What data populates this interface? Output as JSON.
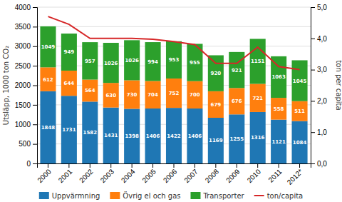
{
  "chart_data": {
    "type": "bar",
    "stacked": true,
    "categories": [
      "2000",
      "2001",
      "2002",
      "2003",
      "2004",
      "2005",
      "2006",
      "2007",
      "2008",
      "2009",
      "2010",
      "2011",
      "2012*"
    ],
    "series": [
      {
        "name": "Uppvärmning",
        "type": "bar",
        "values": [
          1848,
          1731,
          1582,
          1431,
          1398,
          1406,
          1422,
          1406,
          1169,
          1255,
          1316,
          1121,
          1084
        ]
      },
      {
        "name": "Övrig el och gas",
        "type": "bar",
        "values": [
          612,
          644,
          564,
          630,
          730,
          704,
          752,
          700,
          679,
          676,
          721,
          558,
          511
        ]
      },
      {
        "name": "Transporter",
        "type": "bar",
        "values": [
          1049,
          949,
          957,
          1026,
          1026,
          994,
          953,
          955,
          920,
          921,
          1151,
          1063,
          1045
        ]
      },
      {
        "name": "ton/capita",
        "type": "line",
        "axis": "y2",
        "values": [
          4.7,
          4.45,
          4.0,
          4.0,
          4.0,
          3.97,
          3.9,
          3.8,
          3.2,
          3.2,
          3.72,
          3.1,
          3.0
        ]
      }
    ],
    "ylabel": "Utsläpp, 1000 ton CO₂",
    "y2label": "ton per capita",
    "ylim": [
      0,
      4000
    ],
    "yticks": [
      0,
      500,
      1000,
      1500,
      2000,
      2500,
      3000,
      3500,
      4000
    ],
    "y2lim": [
      0.0,
      5.0
    ],
    "y2ticks": [
      {
        "value": 0.0,
        "label": "0,0"
      },
      {
        "value": 1.0,
        "label": "1,0"
      },
      {
        "value": 2.0,
        "label": "2,0"
      },
      {
        "value": 3.0,
        "label": "3,0"
      },
      {
        "value": 4.0,
        "label": "4,0"
      },
      {
        "value": 5.0,
        "label": "5,0"
      }
    ],
    "grid": true,
    "data_labels": true,
    "legend": "bottom"
  }
}
